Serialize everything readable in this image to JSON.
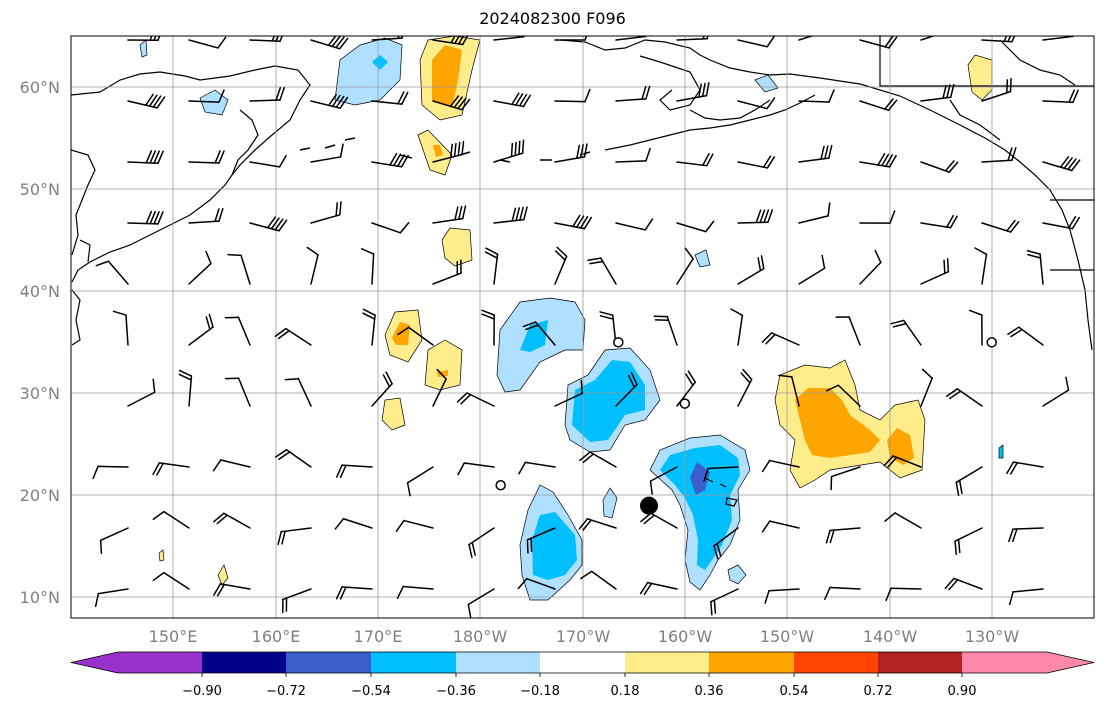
{
  "map": {
    "title": "2024082300 F096",
    "lat_labels": [
      "60°N",
      "50°N",
      "40°N",
      "30°N",
      "20°N",
      "10°N"
    ],
    "lon_labels": [
      "150°E",
      "160°E",
      "170°E",
      "180°W",
      "170°W",
      "160°W",
      "150°W",
      "140°W",
      "130°W"
    ],
    "axis_label_color": "#808080",
    "projection": "PlateCarree",
    "extent": {
      "lon_min": 140,
      "lon_max": 240,
      "lat_min": 8,
      "lat_max": 65
    },
    "gridlines": true,
    "field": "filled contour anomaly with wind barbs"
  },
  "colorbar": {
    "tick_labels": [
      "−0.90",
      "−0.72",
      "−0.54",
      "−0.36",
      "−0.18",
      "0.18",
      "0.36",
      "0.54",
      "0.72",
      "0.90"
    ],
    "colors": [
      "#9932cc",
      "#00008b",
      "#3a5fcd",
      "#00bfff",
      "#b0e0ff",
      "#ffffff",
      "#ffec8b",
      "#ffa500",
      "#ff4500",
      "#b22222",
      "#ff88aa"
    ],
    "extend": "both"
  },
  "markers": [
    {
      "name": "filled-dot",
      "lon": 196.5,
      "lat": 19.0
    },
    {
      "name": "open-circle-1",
      "lon": 193.5,
      "lat": 35.0
    },
    {
      "name": "open-circle-2",
      "lon": 200.0,
      "lat": 29.0
    },
    {
      "name": "open-circle-3",
      "lon": 182.0,
      "lat": 21.0
    },
    {
      "name": "open-circle-4",
      "lon": 230.0,
      "lat": 35.0
    }
  ]
}
